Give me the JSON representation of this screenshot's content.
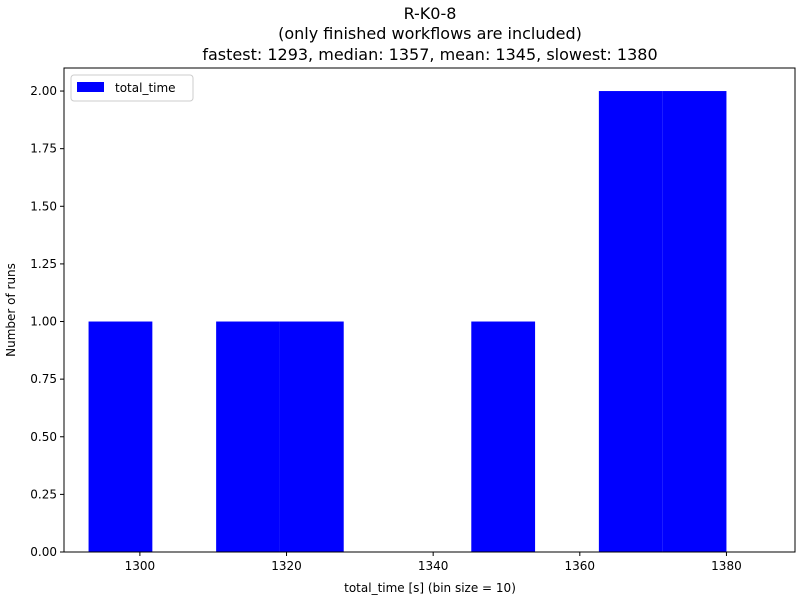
{
  "chart_data": {
    "type": "bar",
    "title_lines": [
      "R-K0-8",
      "(only finished workflows are included)",
      "fastest: 1293, median: 1357, mean: 1345, slowest: 1380"
    ],
    "xlabel": "total_time [s] (bin size = 10)",
    "ylabel": "Number of runs",
    "xlim": [
      1289.65,
      1389.35
    ],
    "ylim": [
      0,
      2.1
    ],
    "x_ticks": [
      1300,
      1320,
      1340,
      1360,
      1380
    ],
    "y_ticks": [
      0.0,
      0.25,
      0.5,
      0.75,
      1.0,
      1.25,
      1.5,
      1.75,
      2.0
    ],
    "x_tick_labels": [
      "1300",
      "1320",
      "1340",
      "1360",
      "1380"
    ],
    "y_tick_labels": [
      "0.00",
      "0.25",
      "0.50",
      "0.75",
      "1.00",
      "1.25",
      "1.50",
      "1.75",
      "2.00"
    ],
    "series": [
      {
        "name": "total_time",
        "color": "#0000ff",
        "bins": [
          {
            "start": 1293,
            "end": 1301.7,
            "count": 1
          },
          {
            "start": 1310.4,
            "end": 1319.1,
            "count": 1
          },
          {
            "start": 1319.1,
            "end": 1327.8,
            "count": 1
          },
          {
            "start": 1327.8,
            "end": 1336.5,
            "count": 0
          },
          {
            "start": 1336.5,
            "end": 1345.2,
            "count": 0
          },
          {
            "start": 1345.2,
            "end": 1353.9,
            "count": 1
          },
          {
            "start": 1353.9,
            "end": 1362.6,
            "count": 0
          },
          {
            "start": 1362.6,
            "end": 1371.3,
            "count": 2
          },
          {
            "start": 1371.3,
            "end": 1380,
            "count": 2
          }
        ]
      }
    ],
    "legend": {
      "position": "upper-left",
      "label": "total_time"
    },
    "grid": false
  }
}
